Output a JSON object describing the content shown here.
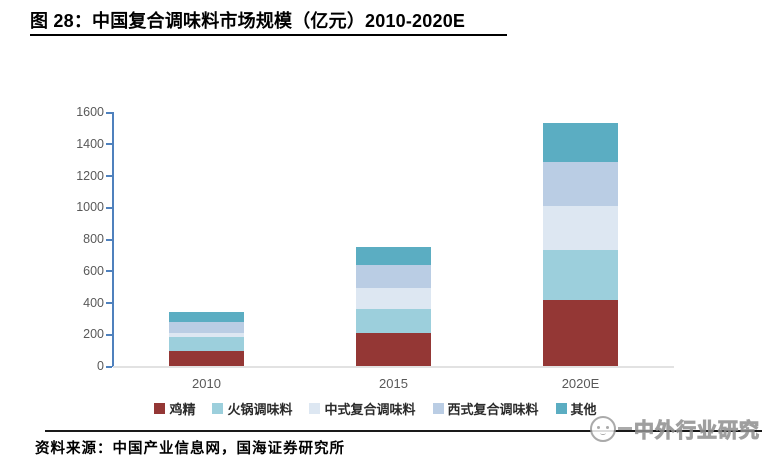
{
  "header": {
    "title": "图 28：中国复合调味料市场规模（亿元）2010-2020E"
  },
  "chart_data": {
    "type": "bar",
    "stacked": true,
    "title": "中国复合调味料市场规模（亿元）2010-2020E",
    "categories": [
      "2010",
      "2015",
      "2020E"
    ],
    "series": [
      {
        "name": "鸡精",
        "color": "#943735",
        "values": [
          97,
          208,
          417
        ]
      },
      {
        "name": "火锅调味料",
        "color": "#9ccfdc",
        "values": [
          85,
          152,
          311
        ]
      },
      {
        "name": "中式复合调味料",
        "color": "#dde7f2",
        "values": [
          28,
          131,
          278
        ]
      },
      {
        "name": "西式复合调味料",
        "color": "#bacde4",
        "values": [
          67,
          143,
          278
        ]
      },
      {
        "name": "其他",
        "color": "#5badc2",
        "values": [
          62,
          118,
          244
        ]
      }
    ],
    "xlabel": "",
    "ylabel": "",
    "ylim": [
      0,
      1600
    ],
    "ytick_step": 200,
    "grid": false,
    "legend_position": "bottom",
    "axis_color": "#4f81bd",
    "baseline_color": "#e2e2e2",
    "tick_label_color": "#595959"
  },
  "footer": {
    "source": "资料来源：中国产业信息网，国海证券研究所"
  },
  "watermark": {
    "text": "中外行业研究",
    "icon": "panda-face-icon"
  }
}
